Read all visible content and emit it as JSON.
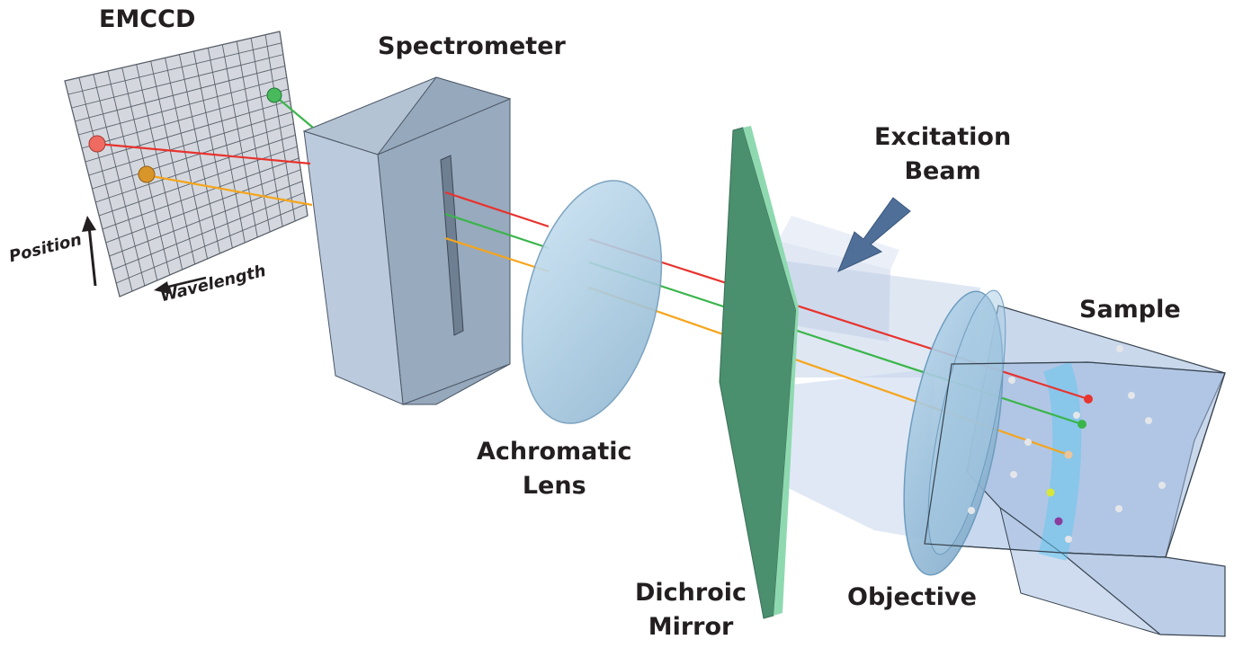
{
  "labels": {
    "emccd": "EMCCD",
    "spectrometer": "Spectrometer",
    "excitation_line1": "Excitation",
    "excitation_line2": "Beam",
    "sample": "Sample",
    "achromatic_line1": "Achromatic",
    "achromatic_line2": "Lens",
    "dichroic_line1": "Dichroic",
    "dichroic_line2": "Mirror",
    "objective": "Objective",
    "position": "Position",
    "wavelength": "Wavelength"
  },
  "colors": {
    "red_beam": "#e8332e",
    "green_beam": "#3ab54a",
    "orange_beam": "#f5a51c",
    "lens": "#9cc4dc",
    "dichroic": "#4a8f6e",
    "dichroic_edge": "#8fd9b0",
    "spectrometer": "#a9bbcf",
    "sample_block": "#a8c2e4",
    "excitation_arrow": "#4f6f99"
  }
}
